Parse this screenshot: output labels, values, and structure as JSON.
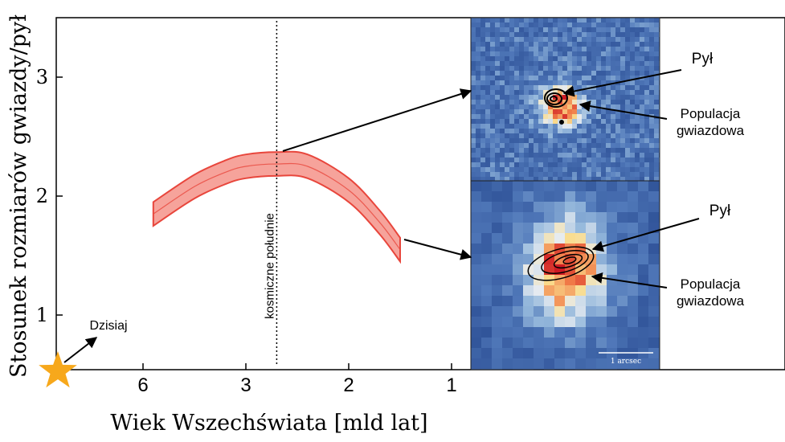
{
  "chart_data": {
    "type": "line",
    "xlabel": "Wiek Wszechświata [mld lat]",
    "ylabel": "Stosunek rozmiarów gwiazdy/pył",
    "x_ticks": [
      6,
      3,
      2,
      1
    ],
    "y_ticks": [
      1,
      2,
      3
    ],
    "ylim": [
      0.3,
      3.5
    ],
    "grid": false,
    "series": [
      {
        "x": [
          5.7,
          4.5,
          3.6,
          3.0,
          2.7,
          2.4,
          2.0,
          1.7,
          1.5
        ],
        "y": [
          1.85,
          2.08,
          2.2,
          2.25,
          2.27,
          2.25,
          2.05,
          1.78,
          1.55
        ],
        "band": 0.1,
        "color": "#e8463c",
        "band_color": "#f6a39b"
      }
    ],
    "vline": {
      "x": 2.7,
      "label": "kosmiczne południe"
    },
    "today": {
      "label": "Dzisiaj",
      "x": 0,
      "y": 0.3,
      "color": "#f7a81b"
    },
    "insets": [
      {
        "dust_label": "Pył",
        "stellar_label": "Populacja\ngwiazdowa"
      },
      {
        "dust_label": "Pył",
        "stellar_label": "Populacja\ngwiazdowa",
        "scalebar_label": "1 arcsec"
      }
    ]
  }
}
